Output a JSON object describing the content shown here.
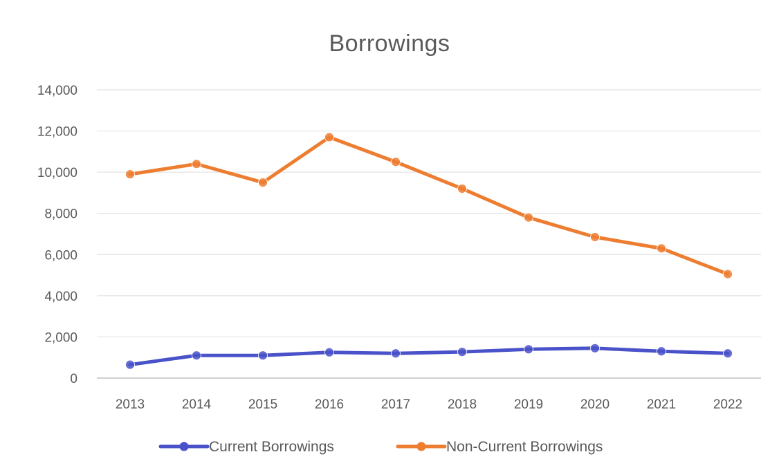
{
  "chart_data": {
    "type": "line",
    "title": "Borrowings",
    "xlabel": "",
    "ylabel": "",
    "categories": [
      "2013",
      "2014",
      "2015",
      "2016",
      "2017",
      "2018",
      "2019",
      "2020",
      "2021",
      "2022"
    ],
    "ylim": [
      0,
      14000
    ],
    "yticks": [
      "0",
      "2,000",
      "4,000",
      "6,000",
      "8,000",
      "10,000",
      "12,000",
      "14,000"
    ],
    "grid": true,
    "legend_position": "bottom",
    "series": [
      {
        "name": "Current Borrowings",
        "color": "#4a52c9",
        "marker": "circle",
        "values": [
          650,
          1100,
          1100,
          1250,
          1200,
          1270,
          1400,
          1450,
          1300,
          1200
        ]
      },
      {
        "name": "Non-Current Borrowings",
        "color": "#ed7d31",
        "marker": "circle",
        "values": [
          9900,
          10400,
          9500,
          11700,
          10500,
          9200,
          7800,
          6850,
          6300,
          5050
        ]
      }
    ]
  }
}
